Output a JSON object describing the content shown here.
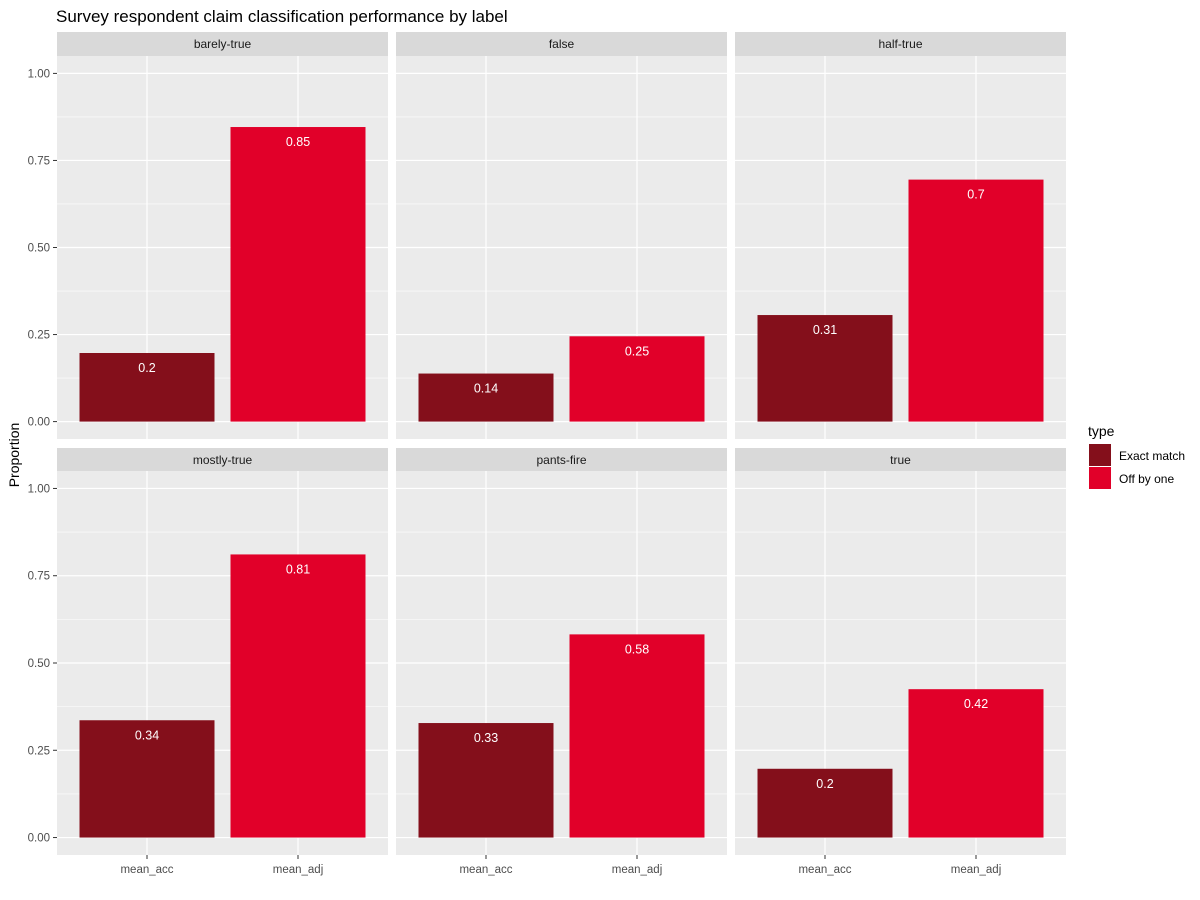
{
  "chart_data": {
    "type": "bar",
    "title": "Survey respondent claim classification performance by label",
    "ylabel": "Proportion",
    "xlabel": "",
    "ylim": [
      0,
      1.05
    ],
    "y_ticks": [
      "0.00",
      "0.25",
      "0.50",
      "0.75",
      "1.00"
    ],
    "y_tick_values": [
      0,
      0.25,
      0.5,
      0.75,
      1.0
    ],
    "categories": [
      "mean_acc",
      "mean_adj"
    ],
    "legend": {
      "title": "type",
      "position": "right",
      "entries": [
        "Exact match",
        "Off by one"
      ]
    },
    "colors": {
      "Exact match": "#840F1B",
      "Off by one": "#E10029",
      "panel_bg": "#EBEBEB",
      "strip_bg": "#D9D9D9",
      "grid": "#FFFFFF"
    },
    "facets": [
      {
        "label": "barely-true",
        "values": [
          0.197,
          0.846
        ],
        "labels": [
          "0.2",
          "0.85"
        ]
      },
      {
        "label": "false",
        "values": [
          0.138,
          0.245
        ],
        "labels": [
          "0.14",
          "0.25"
        ]
      },
      {
        "label": "half-true",
        "values": [
          0.306,
          0.695
        ],
        "labels": [
          "0.31",
          "0.7"
        ]
      },
      {
        "label": "mostly-true",
        "values": [
          0.336,
          0.811
        ],
        "labels": [
          "0.34",
          "0.81"
        ]
      },
      {
        "label": "pants-fire",
        "values": [
          0.328,
          0.582
        ],
        "labels": [
          "0.33",
          "0.58"
        ]
      },
      {
        "label": "true",
        "values": [
          0.197,
          0.425
        ],
        "labels": [
          "0.2",
          "0.42"
        ]
      }
    ]
  }
}
